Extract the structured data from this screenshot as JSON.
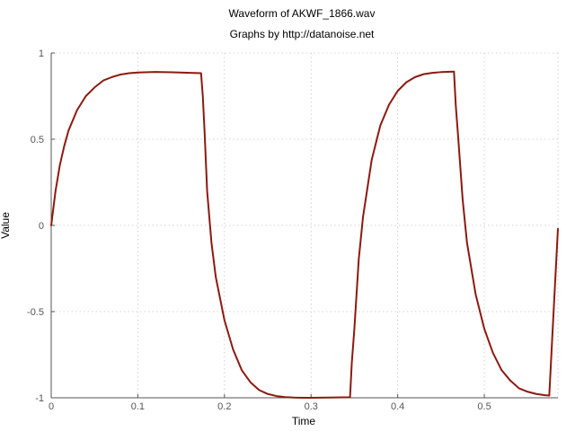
{
  "chart_data": {
    "type": "line",
    "title": "Waveform of AKWF_1866.wav",
    "subtitle": "Graphs by http://datanoise.net",
    "xlabel": "Time",
    "ylabel": "Value",
    "xlim": [
      0,
      0.585
    ],
    "ylim": [
      -1,
      1
    ],
    "grid": true,
    "x_ticks": [
      0,
      0.1,
      0.2,
      0.3,
      0.4,
      0.5
    ],
    "x_tick_labels": [
      "0",
      "0.1",
      "0.2",
      "0.3",
      "0.4",
      "0.5"
    ],
    "y_ticks": [
      1,
      0.5,
      0,
      -0.5,
      -1
    ],
    "y_tick_labels": [
      "1",
      "0.5",
      "0",
      "-0.5",
      "-1"
    ],
    "series": [
      {
        "color": "#8b1a10",
        "x": [
          0.0,
          0.005,
          0.01,
          0.015,
          0.02,
          0.03,
          0.04,
          0.05,
          0.06,
          0.07,
          0.08,
          0.09,
          0.1,
          0.12,
          0.14,
          0.16,
          0.173,
          0.175,
          0.177,
          0.18,
          0.185,
          0.19,
          0.2,
          0.21,
          0.22,
          0.23,
          0.24,
          0.25,
          0.26,
          0.27,
          0.28,
          0.29,
          0.3,
          0.32,
          0.345,
          0.347,
          0.35,
          0.355,
          0.36,
          0.37,
          0.38,
          0.39,
          0.4,
          0.41,
          0.42,
          0.43,
          0.44,
          0.45,
          0.465,
          0.467,
          0.47,
          0.475,
          0.48,
          0.49,
          0.5,
          0.51,
          0.52,
          0.53,
          0.54,
          0.55,
          0.56,
          0.57,
          0.575,
          0.58,
          0.585
        ],
        "y": [
          0.0,
          0.2,
          0.35,
          0.46,
          0.55,
          0.67,
          0.75,
          0.8,
          0.84,
          0.86,
          0.875,
          0.883,
          0.887,
          0.89,
          0.888,
          0.885,
          0.883,
          0.75,
          0.55,
          0.2,
          -0.1,
          -0.3,
          -0.55,
          -0.72,
          -0.84,
          -0.91,
          -0.955,
          -0.978,
          -0.99,
          -0.996,
          -0.999,
          -1.0,
          -1.0,
          -0.999,
          -0.997,
          -0.8,
          -0.6,
          -0.2,
          0.05,
          0.38,
          0.58,
          0.7,
          0.78,
          0.83,
          0.86,
          0.877,
          0.885,
          0.889,
          0.892,
          0.7,
          0.5,
          0.15,
          -0.1,
          -0.4,
          -0.6,
          -0.74,
          -0.84,
          -0.9,
          -0.945,
          -0.965,
          -0.978,
          -0.985,
          -0.987,
          -0.5,
          -0.02
        ]
      }
    ]
  }
}
